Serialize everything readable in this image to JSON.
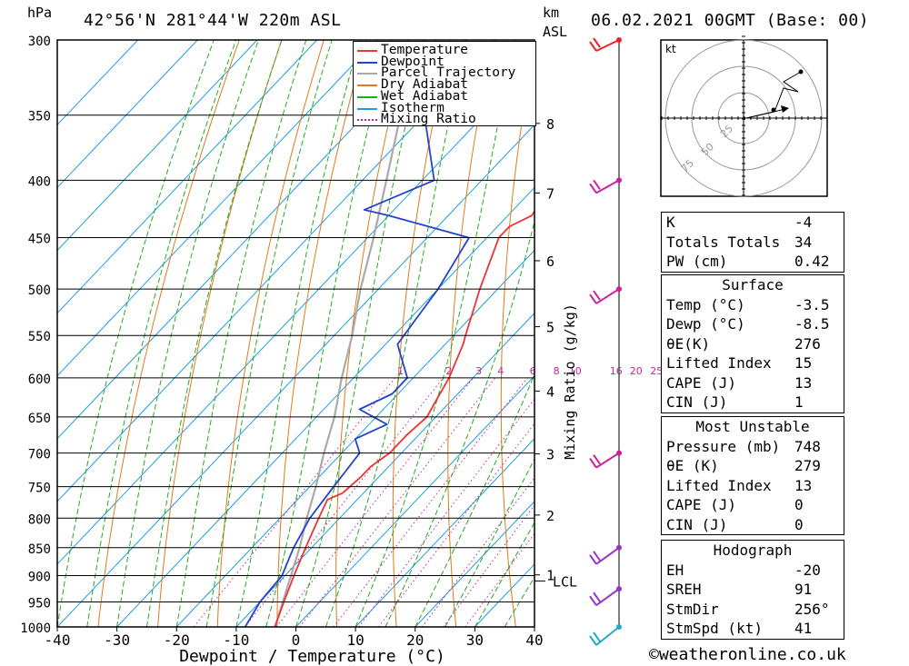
{
  "header": {
    "location": "42°56'N  281°44'W  220m  ASL",
    "datetime": "06.02.2021  00GMT  (Base: 00)",
    "pressure_unit": "hPa",
    "height_unit_line1": "km",
    "height_unit_line2": "ASL"
  },
  "legend": {
    "items": [
      {
        "label": "Temperature",
        "color": "#ee3333",
        "style": "solid"
      },
      {
        "label": "Dewpoint",
        "color": "#2244cc",
        "style": "solid"
      },
      {
        "label": "Parcel Trajectory",
        "color": "#aaaaaa",
        "style": "solid"
      },
      {
        "label": "Dry Adiabat",
        "color": "#e07a1a",
        "style": "solid"
      },
      {
        "label": "Wet Adiabat",
        "color": "#22aa22",
        "style": "solid"
      },
      {
        "label": "Isotherm",
        "color": "#1e9ee0",
        "style": "solid"
      },
      {
        "label": "Mixing Ratio",
        "color": "#cc2299",
        "style": "dotted"
      }
    ]
  },
  "chart_data": {
    "type": "skew-t",
    "xlabel": "Dewpoint / Temperature (°C)",
    "ylabel_right": "Mixing Ratio (g/kg)",
    "x_ticks": [
      -40,
      -30,
      -20,
      -10,
      0,
      10,
      20,
      30,
      40
    ],
    "xlim": [
      -40,
      40
    ],
    "pressure_levels": [
      300,
      350,
      400,
      450,
      500,
      550,
      600,
      650,
      700,
      750,
      800,
      850,
      900,
      950,
      1000
    ],
    "height_ticks_km": [
      1,
      2,
      3,
      4,
      5,
      6,
      7,
      8
    ],
    "lcl_label": "LCL",
    "mixing_ratio_labels": [
      "1",
      "2",
      "3",
      "4",
      "6",
      "8",
      "10",
      "16",
      "20",
      "25"
    ],
    "temperature": [
      {
        "p": 1000,
        "t": -3.5
      },
      {
        "p": 970,
        "t": -5
      },
      {
        "p": 950,
        "t": -6
      },
      {
        "p": 900,
        "t": -8.5
      },
      {
        "p": 850,
        "t": -11
      },
      {
        "p": 800,
        "t": -13.5
      },
      {
        "p": 770,
        "t": -15
      },
      {
        "p": 760,
        "t": -13.5
      },
      {
        "p": 735,
        "t": -13
      },
      {
        "p": 720,
        "t": -13
      },
      {
        "p": 700,
        "t": -12
      },
      {
        "p": 675,
        "t": -12
      },
      {
        "p": 650,
        "t": -11.5
      },
      {
        "p": 620,
        "t": -13
      },
      {
        "p": 600,
        "t": -14
      },
      {
        "p": 560,
        "t": -17
      },
      {
        "p": 550,
        "t": -18
      },
      {
        "p": 500,
        "t": -23
      },
      {
        "p": 450,
        "t": -28
      },
      {
        "p": 440,
        "t": -28
      },
      {
        "p": 430,
        "t": -26
      },
      {
        "p": 400,
        "t": -28
      },
      {
        "p": 350,
        "t": -35
      },
      {
        "p": 320,
        "t": -40
      },
      {
        "p": 310,
        "t": -41
      },
      {
        "p": 300,
        "t": -41
      }
    ],
    "dewpoint": [
      {
        "p": 1000,
        "t": -8.5
      },
      {
        "p": 950,
        "t": -10
      },
      {
        "p": 900,
        "t": -10.5
      },
      {
        "p": 880,
        "t": -11.5
      },
      {
        "p": 850,
        "t": -13
      },
      {
        "p": 800,
        "t": -15
      },
      {
        "p": 750,
        "t": -16
      },
      {
        "p": 700,
        "t": -17
      },
      {
        "p": 680,
        "t": -20
      },
      {
        "p": 660,
        "t": -17
      },
      {
        "p": 640,
        "t": -24
      },
      {
        "p": 620,
        "t": -21
      },
      {
        "p": 600,
        "t": -21
      },
      {
        "p": 560,
        "t": -28
      },
      {
        "p": 500,
        "t": -30
      },
      {
        "p": 450,
        "t": -33
      },
      {
        "p": 430,
        "t": -50
      },
      {
        "p": 425,
        "t": -55
      },
      {
        "p": 400,
        "t": -48
      },
      {
        "p": 350,
        "t": -60
      },
      {
        "p": 300,
        "t": -65
      }
    ],
    "parcel": [
      {
        "p": 1000,
        "t": -3.5
      },
      {
        "p": 900,
        "t": -9
      },
      {
        "p": 850,
        "t": -12
      },
      {
        "p": 800,
        "t": -15.5
      },
      {
        "p": 750,
        "t": -19
      },
      {
        "p": 700,
        "t": -23
      },
      {
        "p": 650,
        "t": -27
      },
      {
        "p": 600,
        "t": -32
      },
      {
        "p": 550,
        "t": -37
      },
      {
        "p": 500,
        "t": -43
      },
      {
        "p": 450,
        "t": -49
      },
      {
        "p": 400,
        "t": -56
      },
      {
        "p": 350,
        "t": -64
      },
      {
        "p": 300,
        "t": -72
      }
    ],
    "wind_profile_levels_hpa": [
      300,
      400,
      500,
      700,
      850,
      925,
      1000
    ]
  },
  "hodograph": {
    "unit": "kt",
    "ring_labels": [
      "25",
      "50",
      "75"
    ]
  },
  "indices": {
    "top": [
      {
        "label": "K",
        "value": "-4"
      },
      {
        "label": "Totals Totals",
        "value": "34"
      },
      {
        "label": "PW (cm)",
        "value": "0.42"
      }
    ],
    "surface": {
      "title": "Surface",
      "rows": [
        {
          "label": "Temp (°C)",
          "value": "-3.5"
        },
        {
          "label": "Dewp (°C)",
          "value": "-8.5"
        },
        {
          "label": "θE(K)",
          "value": "276"
        },
        {
          "label": "Lifted Index",
          "value": "15"
        },
        {
          "label": "CAPE (J)",
          "value": "13"
        },
        {
          "label": "CIN (J)",
          "value": "1"
        }
      ]
    },
    "most_unstable": {
      "title": "Most Unstable",
      "rows": [
        {
          "label": "Pressure (mb)",
          "value": "748"
        },
        {
          "label": "θE (K)",
          "value": "279"
        },
        {
          "label": "Lifted Index",
          "value": "13"
        },
        {
          "label": "CAPE (J)",
          "value": "0"
        },
        {
          "label": "CIN (J)",
          "value": "0"
        }
      ]
    },
    "hodograph": {
      "title": "Hodograph",
      "rows": [
        {
          "label": "EH",
          "value": "-20"
        },
        {
          "label": "SREH",
          "value": "91"
        },
        {
          "label": "StmDir",
          "value": "256°"
        },
        {
          "label": "StmSpd (kt)",
          "value": "41"
        }
      ]
    }
  },
  "footer": {
    "copyright_symbol": "©",
    "site": "weatheronline.co.uk"
  }
}
